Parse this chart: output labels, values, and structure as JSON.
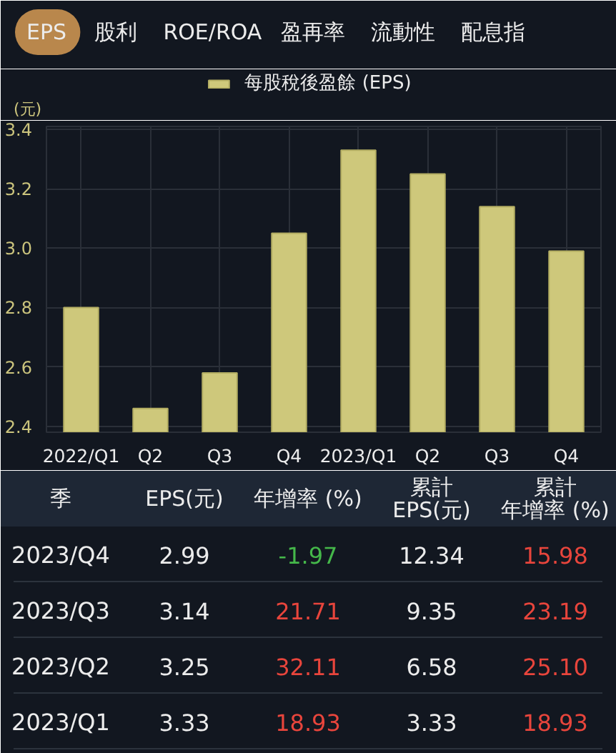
{
  "chart_data": [
    {
      "type": "other",
      "categories": [
        "EPS",
        "股利",
        "ROE/ROA",
        "盈再率",
        "流動性",
        "配息指"
      ],
      "colors": [
        "#b9874c",
        null,
        null,
        null,
        null,
        null
      ]
    },
    {
      "type": "bar",
      "categories": [
        "2022/Q1",
        "Q2",
        "Q3",
        "Q4",
        "2023/Q1",
        "Q2",
        "Q3",
        "Q4"
      ],
      "series": [
        {
          "name": "每股稅後盈餘 (EPS)",
          "color": "#cec87b",
          "values": [
            2.8,
            2.46,
            2.58,
            3.05,
            3.33,
            3.25,
            3.14,
            2.99
          ]
        }
      ],
      "ylabel": "(元)",
      "ylim": [
        2.38,
        3.41
      ],
      "yticks": [
        2.4,
        2.6,
        2.8,
        {
          "value": 3.0,
          "label": "3.0"
        },
        3.2,
        3.4
      ],
      "grid": true,
      "legend": "top"
    },
    {
      "type": "other",
      "ylabel": "季",
      "categories": [
        "2023/Q4",
        "2023/Q3",
        "2023/Q2",
        "2023/Q1"
      ],
      "series": [
        {
          "name": "EPS(元)",
          "values": [
            2.99,
            3.14,
            3.25,
            3.33
          ]
        },
        {
          "name": "年增率 (%)",
          "colors": [
            "#45b84a",
            "#e8453c",
            "#e8453c",
            "#e8453c"
          ],
          "values": [
            -1.97,
            21.71,
            32.11,
            18.93
          ]
        },
        {
          "name": "累計EPS(元)",
          "values": [
            12.34,
            9.35,
            6.58,
            3.33
          ]
        },
        {
          "name": "累計年增率 (%)",
          "colors": [
            "#e8453c",
            "#e8453c",
            "#e8453c",
            "#e8453c"
          ],
          "values": [
            15.98,
            23.19,
            25.1,
            18.93
          ],
          "value_labels": [
            "15.98",
            "23.19",
            "25.10",
            "18.93"
          ]
        }
      ],
      "data_labels": true
    }
  ]
}
